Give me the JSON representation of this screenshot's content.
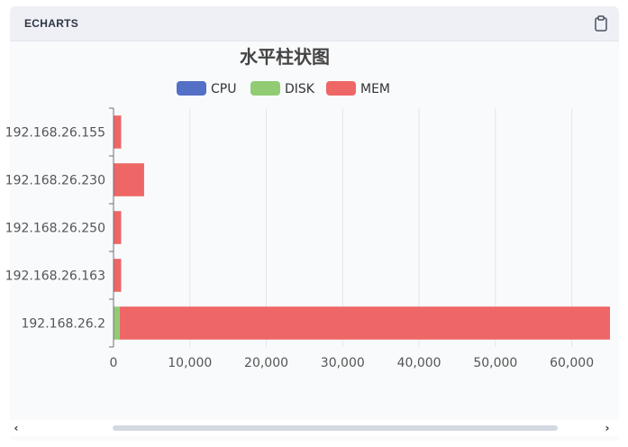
{
  "header": {
    "title": "ECHARTS",
    "copy_icon": "clipboard-icon"
  },
  "scrollbar": {
    "left_arrow": "‹",
    "right_arrow": "›"
  },
  "colors": {
    "CPU": "#5470c6",
    "DISK": "#91cc75",
    "MEM": "#ee6666",
    "axis": "#6e7079",
    "grid": "#e0e6f1",
    "label": "#555555",
    "title": "#444444"
  },
  "chart_data": {
    "type": "bar",
    "orientation": "horizontal",
    "stacked": true,
    "title": "水平柱状图",
    "legend_position": "top-center",
    "categories": [
      "192.168.26.155",
      "192.168.26.230",
      "192.168.26.250",
      "192.168.26.163",
      "192.168.26.2"
    ],
    "series": [
      {
        "name": "CPU",
        "values": [
          0,
          0,
          0,
          0,
          0
        ]
      },
      {
        "name": "DISK",
        "values": [
          0,
          0,
          0,
          0,
          800
        ]
      },
      {
        "name": "MEM",
        "values": [
          1000,
          4000,
          1000,
          1000,
          64300
        ]
      }
    ],
    "xlim": [
      0,
      65000
    ],
    "xticks": [
      0,
      10000,
      20000,
      30000,
      40000,
      50000,
      60000
    ],
    "xtick_labels": [
      "0",
      "10,000",
      "20,000",
      "30,000",
      "40,000",
      "50,000",
      "60,000"
    ],
    "grid": true
  }
}
